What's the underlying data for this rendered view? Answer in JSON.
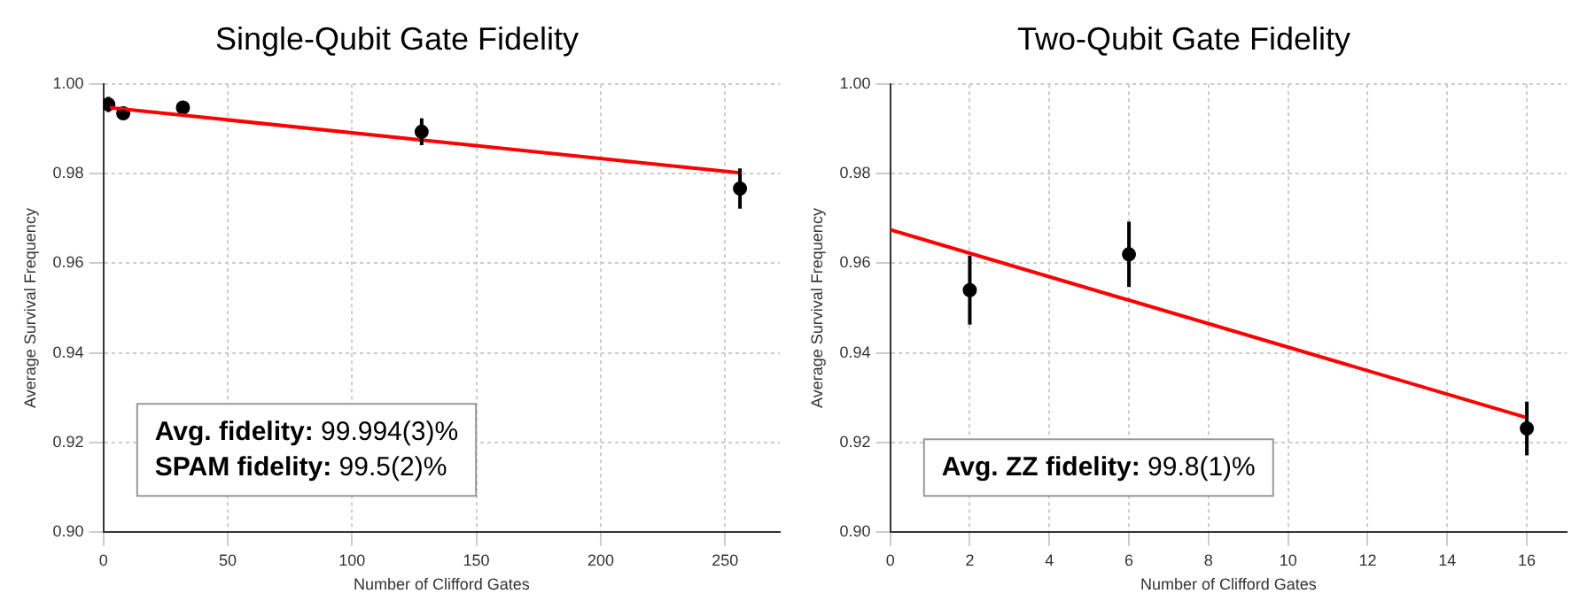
{
  "chart_data": [
    {
      "type": "scatter",
      "title": "Single-Qubit Gate Fidelity",
      "xlabel": "Number of Clifford Gates",
      "ylabel": "Average Survival Frequency",
      "xlim": [
        0,
        272
      ],
      "xticks": [
        0,
        50,
        100,
        150,
        200,
        250
      ],
      "ylim": [
        0.9,
        1.0
      ],
      "yticks": [
        {
          "value": 0.9,
          "label": "0.90"
        },
        {
          "value": 0.92,
          "label": "0.92"
        },
        {
          "value": 0.94,
          "label": "0.94"
        },
        {
          "value": 0.96,
          "label": "0.96"
        },
        {
          "value": 0.98,
          "label": "0.98"
        },
        {
          "value": 1.0,
          "label": "1.00"
        }
      ],
      "grid": true,
      "legend": false,
      "annotations": [
        "Avg. fidelity: 99.994(3)%",
        "SPAM fidelity: 99.5(2)%"
      ],
      "series": [
        {
          "marker": "circle",
          "color": "#000000",
          "x": [
            2,
            8,
            32,
            128,
            256
          ],
          "values": [
            0.9955,
            0.9935,
            0.9948,
            0.9894,
            0.9767
          ],
          "errors": [
            0.0017,
            0.0008,
            0.0012,
            0.003,
            0.0045
          ]
        },
        {
          "type": "line",
          "color": "#ff0000",
          "x": [
            2,
            256
          ],
          "values": [
            0.9948,
            0.9802
          ]
        }
      ]
    },
    {
      "type": "scatter",
      "title": "Two-Qubit Gate Fidelity",
      "xlabel": "Number of Clifford Gates",
      "ylabel": "Average Survival Frequency",
      "xlim": [
        0,
        17
      ],
      "xticks": [
        0,
        2,
        4,
        6,
        8,
        10,
        12,
        14,
        16
      ],
      "ylim": [
        0.9,
        1.0
      ],
      "yticks": [
        {
          "value": 0.9,
          "label": "0.90"
        },
        {
          "value": 0.92,
          "label": "0.92"
        },
        {
          "value": 0.94,
          "label": "0.94"
        },
        {
          "value": 0.96,
          "label": "0.96"
        },
        {
          "value": 0.98,
          "label": "0.98"
        },
        {
          "value": 1.0,
          "label": "1.00"
        }
      ],
      "grid": true,
      "legend": false,
      "annotations": [
        "Avg. ZZ fidelity: 99.8(1)%"
      ],
      "series": [
        {
          "marker": "circle",
          "color": "#000000",
          "x": [
            2,
            6,
            16
          ],
          "values": [
            0.954,
            0.962,
            0.9231
          ],
          "errors": [
            0.0077,
            0.0073,
            0.006
          ]
        },
        {
          "type": "line",
          "color": "#ff0000",
          "x": [
            0,
            16
          ],
          "values": [
            0.9675,
            0.9255
          ]
        }
      ]
    }
  ]
}
